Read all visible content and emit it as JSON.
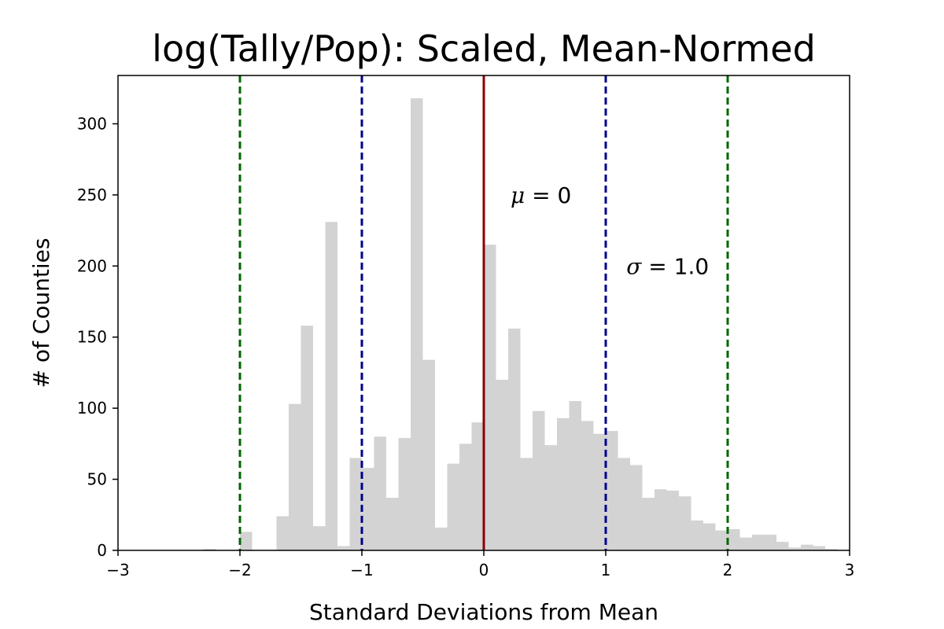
{
  "chart_data": {
    "type": "bar",
    "title": "log(Tally/Pop): Scaled, Mean-Normed",
    "xlabel": "Standard Deviations from Mean",
    "ylabel": "# of Counties",
    "xlim": [
      -3,
      3
    ],
    "ylim": [
      0,
      334
    ],
    "x_ticks": [
      {
        "value": -3,
        "label": "−3"
      },
      {
        "value": -2,
        "label": "−2"
      },
      {
        "value": -1,
        "label": "−1"
      },
      {
        "value": 0,
        "label": "0"
      },
      {
        "value": 1,
        "label": "1"
      },
      {
        "value": 2,
        "label": "2"
      },
      {
        "value": 3,
        "label": "3"
      }
    ],
    "y_ticks": [
      {
        "value": 0,
        "label": "0"
      },
      {
        "value": 50,
        "label": "50"
      },
      {
        "value": 100,
        "label": "100"
      },
      {
        "value": 150,
        "label": "150"
      },
      {
        "value": 200,
        "label": "200"
      },
      {
        "value": 250,
        "label": "250"
      },
      {
        "value": 300,
        "label": "300"
      }
    ],
    "bin_width": 0.1,
    "bars": [
      {
        "x0": -2.3,
        "value": 1
      },
      {
        "x0": -2.0,
        "value": 13
      },
      {
        "x0": -1.7,
        "value": 24
      },
      {
        "x0": -1.6,
        "value": 103
      },
      {
        "x0": -1.5,
        "value": 158
      },
      {
        "x0": -1.4,
        "value": 17
      },
      {
        "x0": -1.3,
        "value": 231
      },
      {
        "x0": -1.2,
        "value": 3
      },
      {
        "x0": -1.1,
        "value": 65
      },
      {
        "x0": -1.0,
        "value": 58
      },
      {
        "x0": -0.9,
        "value": 80
      },
      {
        "x0": -0.8,
        "value": 37
      },
      {
        "x0": -0.7,
        "value": 79
      },
      {
        "x0": -0.6,
        "value": 318
      },
      {
        "x0": -0.5,
        "value": 134
      },
      {
        "x0": -0.4,
        "value": 16
      },
      {
        "x0": -0.3,
        "value": 61
      },
      {
        "x0": -0.2,
        "value": 75
      },
      {
        "x0": -0.1,
        "value": 90
      },
      {
        "x0": 0.0,
        "value": 215
      },
      {
        "x0": 0.1,
        "value": 120
      },
      {
        "x0": 0.2,
        "value": 156
      },
      {
        "x0": 0.3,
        "value": 65
      },
      {
        "x0": 0.4,
        "value": 98
      },
      {
        "x0": 0.5,
        "value": 74
      },
      {
        "x0": 0.6,
        "value": 93
      },
      {
        "x0": 0.7,
        "value": 105
      },
      {
        "x0": 0.8,
        "value": 91
      },
      {
        "x0": 0.9,
        "value": 82
      },
      {
        "x0": 1.0,
        "value": 84
      },
      {
        "x0": 1.1,
        "value": 65
      },
      {
        "x0": 1.2,
        "value": 60
      },
      {
        "x0": 1.3,
        "value": 37
      },
      {
        "x0": 1.4,
        "value": 43
      },
      {
        "x0": 1.5,
        "value": 42
      },
      {
        "x0": 1.6,
        "value": 38
      },
      {
        "x0": 1.7,
        "value": 21
      },
      {
        "x0": 1.8,
        "value": 19
      },
      {
        "x0": 1.9,
        "value": 14
      },
      {
        "x0": 2.0,
        "value": 15
      },
      {
        "x0": 2.1,
        "value": 9
      },
      {
        "x0": 2.2,
        "value": 11
      },
      {
        "x0": 2.3,
        "value": 11
      },
      {
        "x0": 2.4,
        "value": 6
      },
      {
        "x0": 2.5,
        "value": 2
      },
      {
        "x0": 2.6,
        "value": 4
      },
      {
        "x0": 2.7,
        "value": 3
      },
      {
        "x0": 2.8,
        "value": 1
      }
    ],
    "reference_lines": [
      {
        "name": "mean-line",
        "x": 0,
        "style": "solid",
        "color": "#8b0000"
      },
      {
        "name": "minus-1-sigma-line",
        "x": -1,
        "style": "dashed",
        "color": "#00008b"
      },
      {
        "name": "plus-1-sigma-line",
        "x": 1,
        "style": "dashed",
        "color": "#00008b"
      },
      {
        "name": "minus-2-sigma-line",
        "x": -2,
        "style": "dashed",
        "color": "#006400"
      },
      {
        "name": "plus-2-sigma-line",
        "x": 2,
        "style": "dashed",
        "color": "#006400"
      }
    ],
    "annotations": [
      {
        "name": "mean-annotation",
        "symbol": "μ",
        "text": " = 0",
        "x": 0.2,
        "y": 250
      },
      {
        "name": "sigma-annotation",
        "symbol": "σ",
        "text": " = 1.0",
        "x": 1.15,
        "y": 200
      }
    ],
    "bar_color": "#d3d3d3",
    "grid": false,
    "legend": "none"
  }
}
